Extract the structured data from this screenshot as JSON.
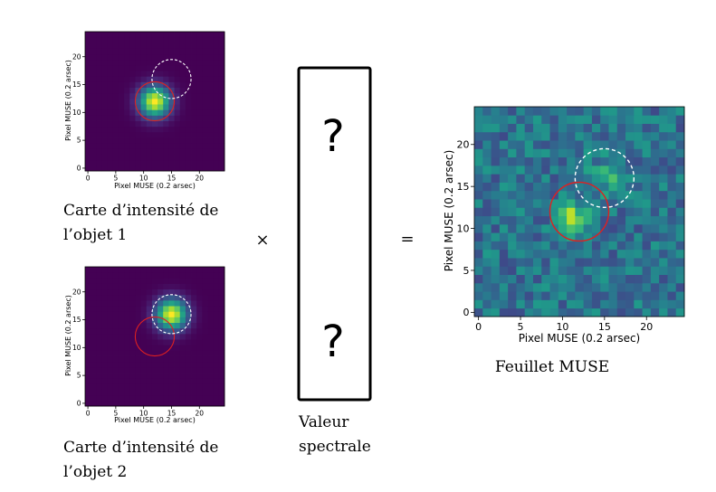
{
  "panels": {
    "object1": {
      "xlabel": "Pixel MUSE  (0.2 arsec)",
      "ylabel": "Pixel MUSE  (0.2 arsec)",
      "xticks": [
        "0",
        "5",
        "10",
        "15",
        "20"
      ],
      "yticks": [
        "0",
        "5",
        "10",
        "15",
        "20"
      ],
      "caption_line1": "Carte d’intensité de",
      "caption_line2": "l’objet 1",
      "source_center": [
        12,
        12
      ]
    },
    "object2": {
      "xlabel": "Pixel MUSE  (0.2 arsec)",
      "ylabel": "Pixel MUSE  (0.2 arsec)",
      "xticks": [
        "0",
        "5",
        "10",
        "15",
        "20"
      ],
      "yticks": [
        "0",
        "5",
        "10",
        "15",
        "20"
      ],
      "caption_line1": "Carte d’intensité de",
      "caption_line2": "l’objet 2",
      "source_center": [
        15,
        16
      ]
    },
    "muse": {
      "xlabel": "Pixel MUSE  (0.2 arsec)",
      "ylabel": "Pixel MUSE  (0.2 arsec)",
      "xticks": [
        "0",
        "5",
        "10",
        "15",
        "20"
      ],
      "yticks": [
        "0",
        "5",
        "10",
        "15",
        "20"
      ],
      "caption": "Feuillet MUSE"
    }
  },
  "circles": {
    "red": {
      "x": 12,
      "y": 12,
      "r": 3.5,
      "color": "#e02020"
    },
    "white_dashed": {
      "x": 15,
      "y": 16,
      "r": 3.5,
      "color": "#ffffff"
    }
  },
  "operators": {
    "times": "×",
    "equals": "="
  },
  "spectrum_box": {
    "question_top": "?",
    "question_bottom": "?",
    "caption_line1": "Valeur",
    "caption_line2": "spectrale"
  },
  "colors": {
    "background": "#440154",
    "peak": "#fde725"
  }
}
